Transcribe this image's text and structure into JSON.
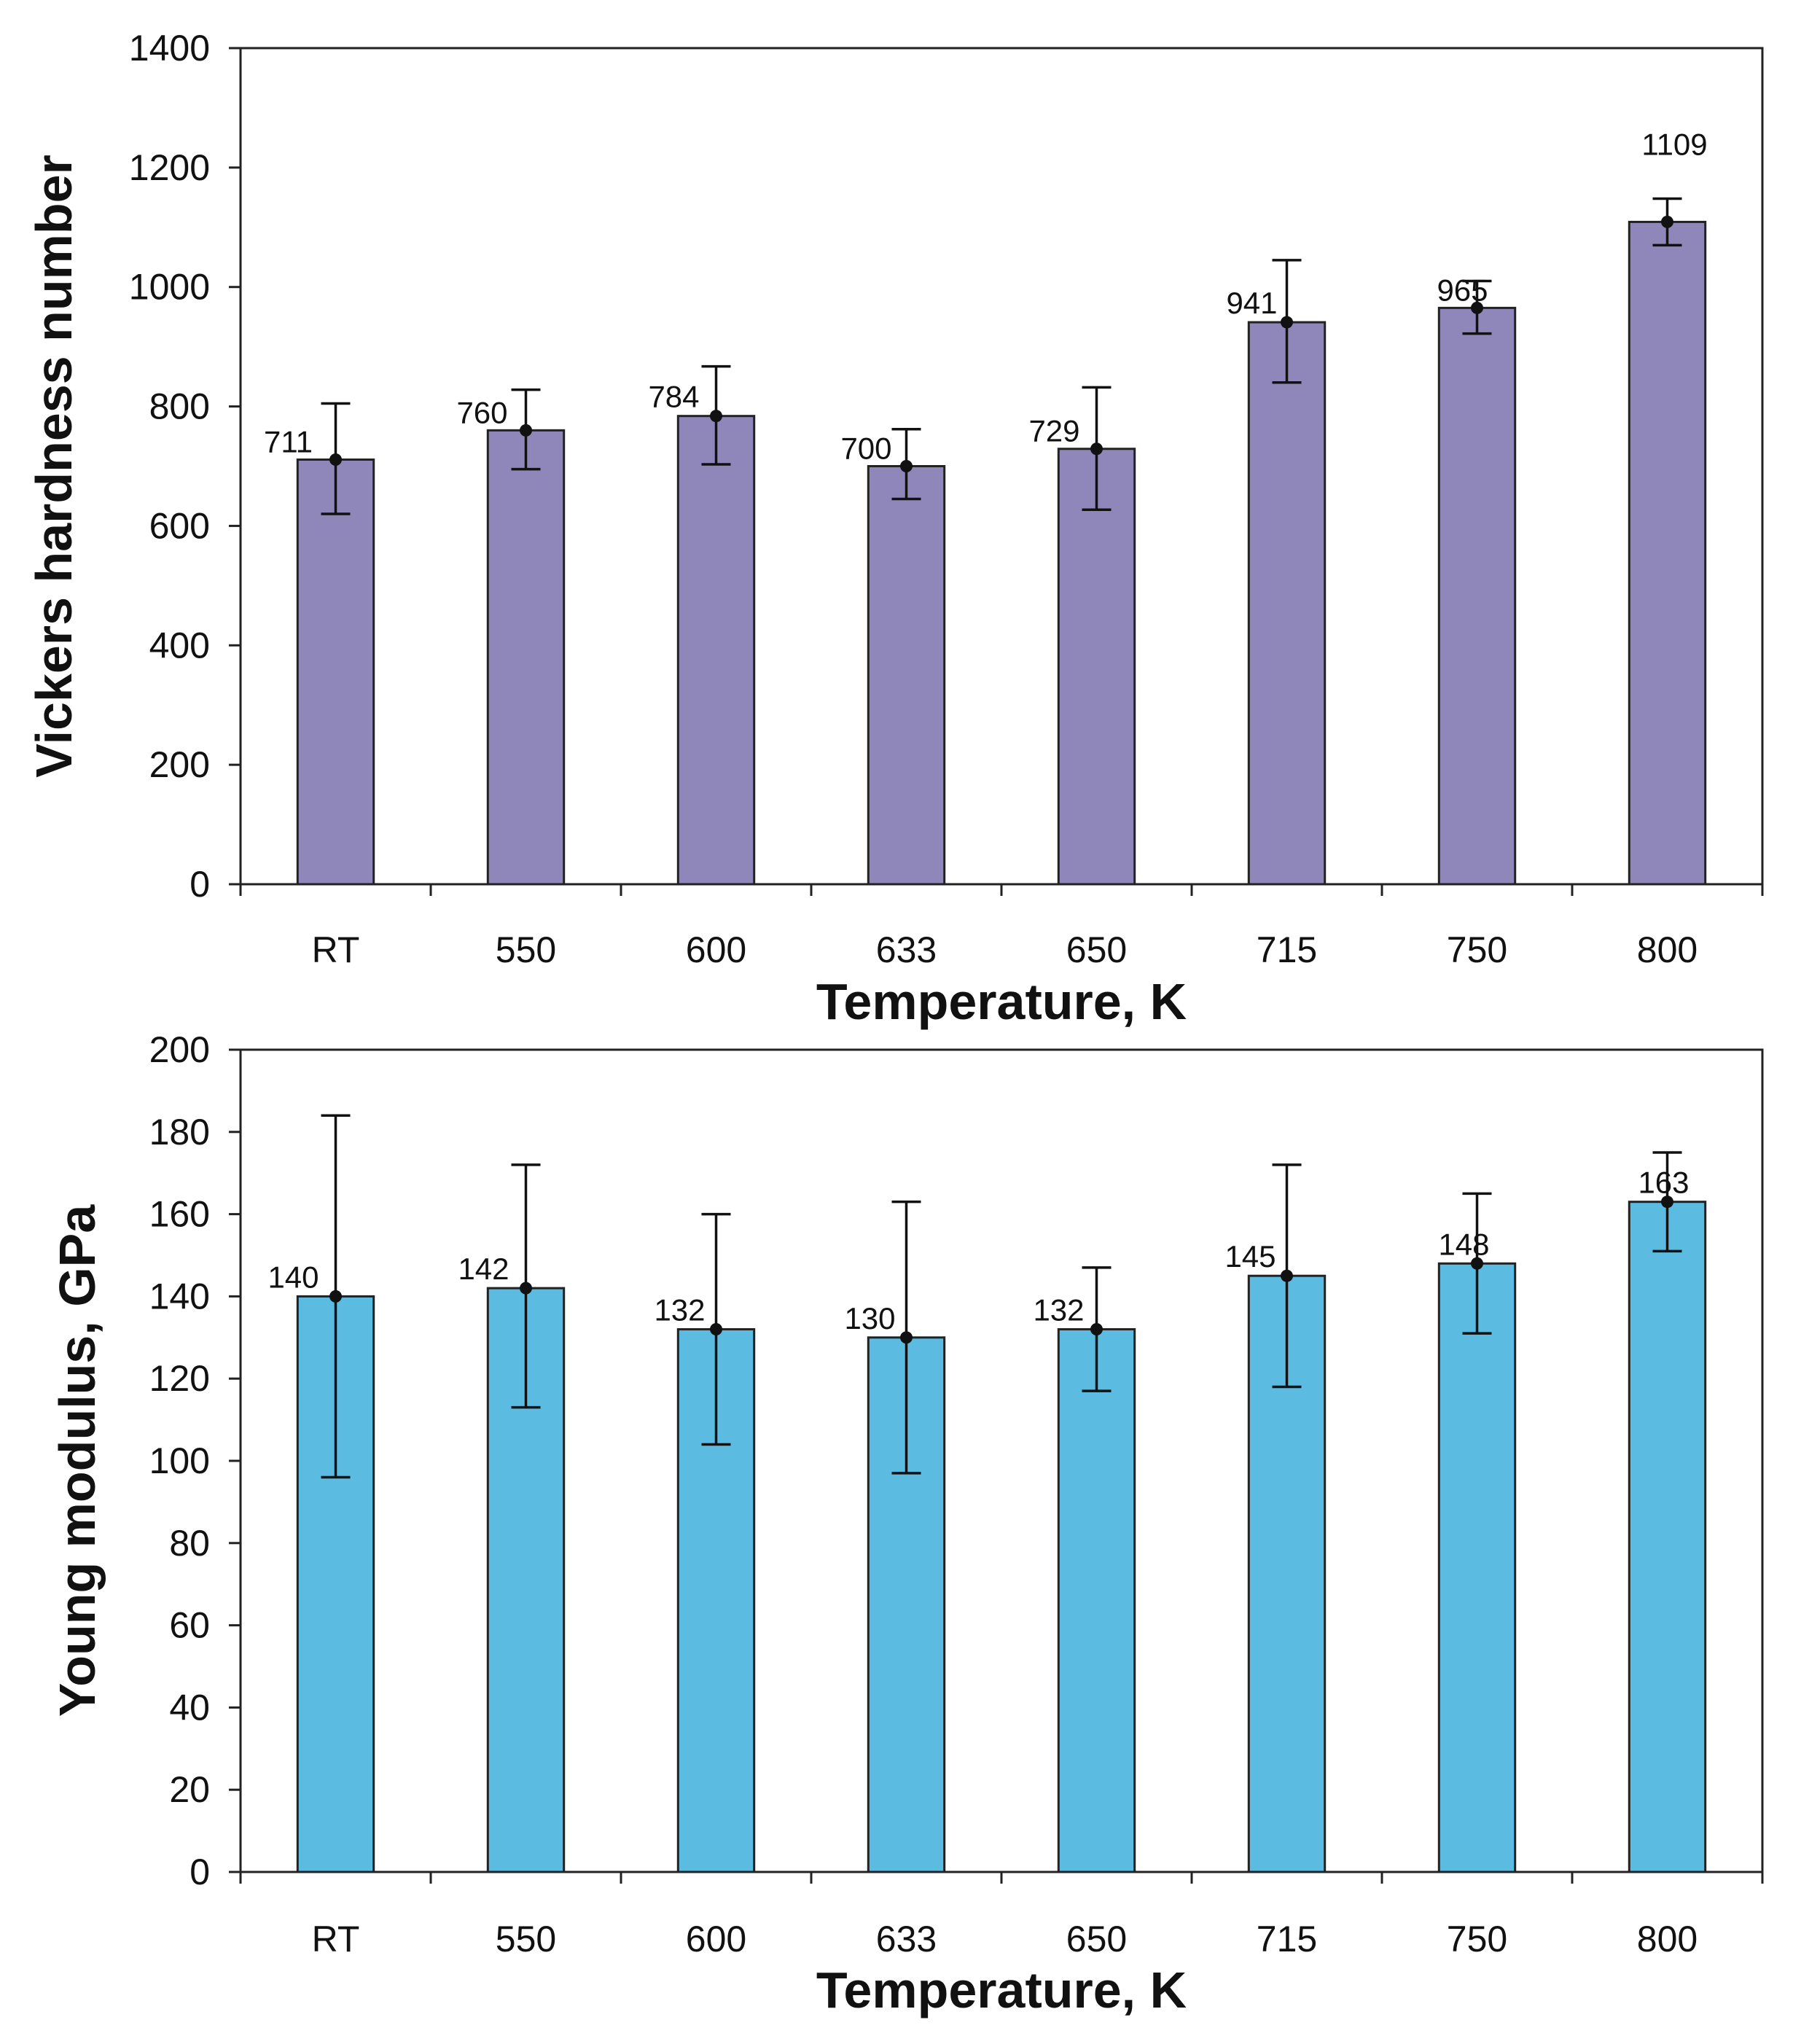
{
  "chart_data": [
    {
      "type": "bar",
      "title": "",
      "xlabel": "Temperature, K",
      "ylabel": "Vickers hardness number",
      "categories": [
        "RT",
        "550",
        "600",
        "633",
        "650",
        "715",
        "750",
        "800"
      ],
      "series": [
        {
          "name": "Vickers hardness number",
          "values": [
            711,
            760,
            784,
            700,
            729,
            941,
            965,
            1109
          ],
          "error_low": [
            620,
            695,
            703,
            645,
            627,
            840,
            922,
            1070
          ],
          "error_high": [
            805,
            828,
            867,
            762,
            832,
            1045,
            1010,
            1148
          ],
          "color": "#8f87b9",
          "data_labels": [
            "711",
            "760",
            "784",
            "700",
            "729",
            "941",
            "965",
            "1109"
          ]
        }
      ],
      "ylim": [
        0,
        1400
      ],
      "yticks": [
        0,
        200,
        400,
        600,
        800,
        1000,
        1200,
        1400
      ],
      "ytick_labels": [
        "0",
        "200",
        "400",
        "600",
        "800",
        "1000",
        "1200",
        "1400"
      ],
      "grid": false,
      "legend": "none"
    },
    {
      "type": "bar",
      "title": "",
      "xlabel": "Temperature, K",
      "ylabel": "Young modulus, GPa",
      "categories": [
        "RT",
        "550",
        "600",
        "633",
        "650",
        "715",
        "750",
        "800"
      ],
      "series": [
        {
          "name": "Young modulus",
          "values": [
            140,
            142,
            132,
            130,
            132,
            145,
            148,
            163
          ],
          "error_low": [
            96,
            113,
            104,
            97,
            117,
            118,
            131,
            151
          ],
          "error_high": [
            184,
            172,
            160,
            163,
            147,
            172,
            165,
            175
          ],
          "color": "#5bbbe0",
          "data_labels": [
            "140",
            "142",
            "132",
            "130",
            "132",
            "145",
            "148",
            "163"
          ]
        }
      ],
      "ylim": [
        0,
        200
      ],
      "yticks": [
        0,
        20,
        40,
        60,
        80,
        100,
        120,
        140,
        160,
        180,
        200
      ],
      "ytick_labels": [
        "0",
        "20",
        "40",
        "60",
        "80",
        "100",
        "120",
        "140",
        "160",
        "180",
        "200"
      ],
      "grid": false,
      "legend": "none"
    }
  ]
}
